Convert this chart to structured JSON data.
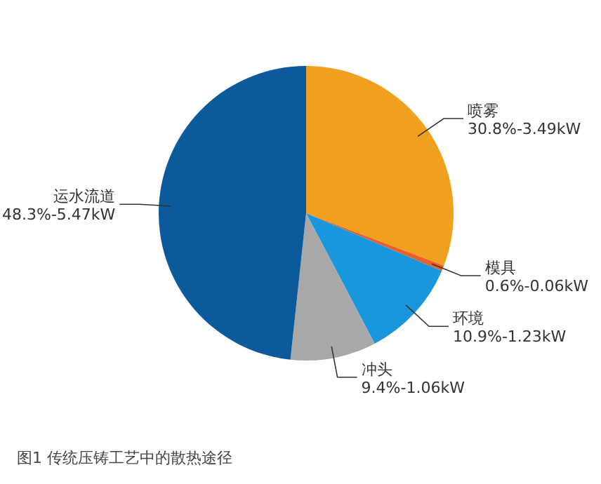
{
  "chart_data": {
    "type": "pie",
    "title": "图1 传统压铸工艺中的散热途径",
    "categories": [
      "喷雾",
      "模具",
      "环境",
      "冲头",
      "运水流道"
    ],
    "values": [
      30.8,
      0.6,
      10.9,
      9.4,
      48.3
    ],
    "value_labels": [
      "30.8%-3.49kW",
      "0.6%-0.06kW",
      "10.9%-1.23kW",
      "9.4%-1.06kW",
      "48.3%-5.47kW"
    ],
    "colors": [
      "#f0a01e",
      "#e8602a",
      "#1a96dc",
      "#a8a8a8",
      "#0b5a9c"
    ]
  }
}
